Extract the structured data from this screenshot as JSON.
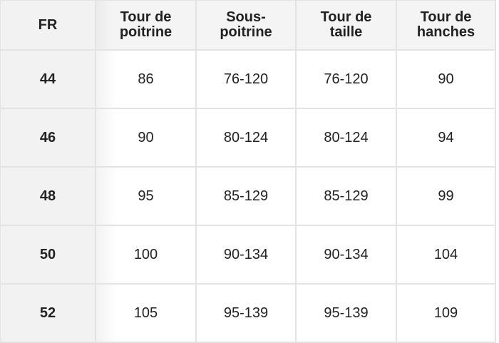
{
  "headers": [
    "FR",
    "Tour de\npoitrine",
    "Sous-\npoitrine",
    "Tour de\ntaille",
    "Tour de\nhanches"
  ],
  "rows": [
    [
      "44",
      "86",
      "76-120",
      "76-120",
      "90"
    ],
    [
      "46",
      "90",
      "80-124",
      "80-124",
      "94"
    ],
    [
      "48",
      "95",
      "85-129",
      "85-129",
      "99"
    ],
    [
      "50",
      "100",
      "90-134",
      "90-134",
      "104"
    ],
    [
      "52",
      "105",
      "95-139",
      "95-139",
      "109"
    ]
  ]
}
